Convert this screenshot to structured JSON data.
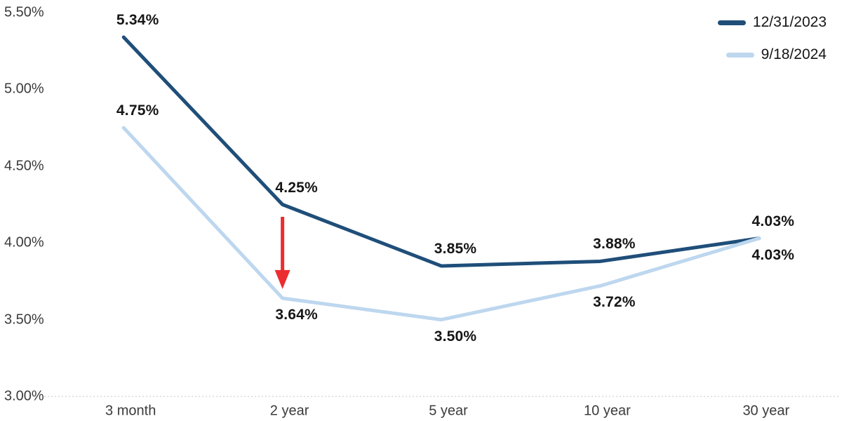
{
  "chart_data": {
    "type": "line",
    "title": "",
    "xlabel": "",
    "ylabel": "",
    "categories": [
      "3 month",
      "2 year",
      "5 year",
      "10 year",
      "30 year"
    ],
    "series": [
      {
        "name": "12/31/2023",
        "color": "#1f4e79",
        "values": [
          5.34,
          4.25,
          3.85,
          3.88,
          4.03
        ],
        "point_labels": [
          "5.34%",
          "4.25%",
          "3.85%",
          "3.88%",
          "4.03%"
        ],
        "label_side": [
          "above",
          "above",
          "above",
          "above",
          "above"
        ]
      },
      {
        "name": "9/18/2024",
        "color": "#bdd7ee",
        "values": [
          4.75,
          3.64,
          3.5,
          3.72,
          4.03
        ],
        "point_labels": [
          "4.75%",
          "3.64%",
          "3.50%",
          "3.72%",
          "4.03%"
        ],
        "label_side": [
          "above",
          "below",
          "below",
          "below",
          "below"
        ]
      }
    ],
    "yaxis": {
      "min": 3.0,
      "max": 5.5,
      "step": 0.5,
      "tick_labels": [
        "3.00%",
        "3.50%",
        "4.00%",
        "4.50%",
        "5.00%",
        "5.50%"
      ]
    },
    "grid": "baseline only (dotted line at 3.00%)",
    "legend_position": "top-right",
    "annotation_arrow": {
      "description": "red down arrow at 2 year between the two curves",
      "category_index": 1,
      "from_value": 4.17,
      "to_value": 3.7,
      "color": "#ec2d30"
    }
  },
  "colors": {
    "background": "#ffffff",
    "baseline_grid": "#d9d9d9",
    "axis_text": "#3b3b3b",
    "data_label_text": "#161616"
  }
}
